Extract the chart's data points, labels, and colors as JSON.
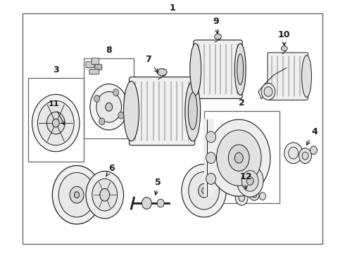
{
  "bg_color": "#ffffff",
  "line_color": "#1a1a1a",
  "label_color": "#000000",
  "fig_width": 4.9,
  "fig_height": 3.6,
  "dpi": 100,
  "font_size": 9
}
